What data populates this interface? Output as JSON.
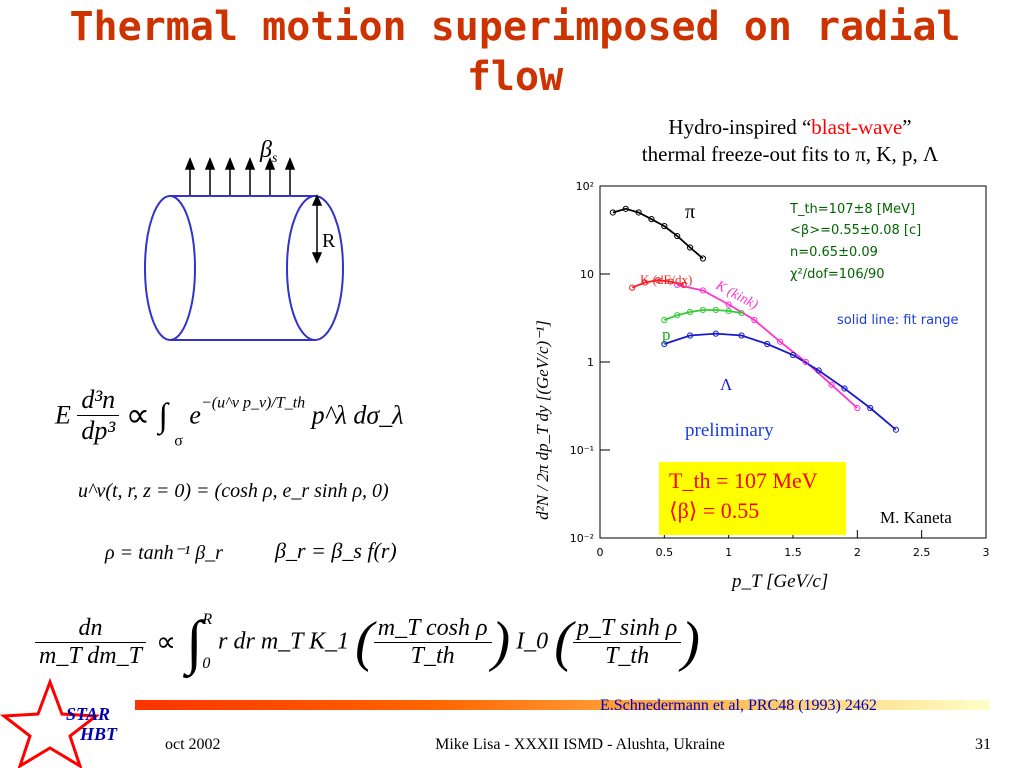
{
  "slide": {
    "title": "Thermal motion superimposed on radial flow",
    "caption_line1_prefix": "Hydro-inspired “",
    "caption_line1_highlight": "blast-wave",
    "caption_line1_suffix": "”",
    "caption_line2": "thermal freeze-out fits to π, K, p, Λ"
  },
  "diagram": {
    "beta_label": "β",
    "beta_sub": "s",
    "radius_label": "R"
  },
  "equations": {
    "eq1_E": "E",
    "eq1_num": "d³n",
    "eq1_den": "dp³",
    "eq1_rest": "∝ ∫",
    "eq1_sigma": "σ",
    "eq1_exp": "e",
    "eq1_exp_sup": "−(u^ν p_ν)/T_th",
    "eq1_tail": "p^λ dσ_λ",
    "eq2": "u^ν(t, r, z = 0) = (cosh ρ, e_r sinh ρ, 0)",
    "eq3a": "ρ = tanh⁻¹ β_r",
    "eq3b": "β_r = β_s  f(r)",
    "eq4_num": "dn",
    "eq4_den": "m_T dm_T",
    "eq4_prop": "∝",
    "eq4_int_upper": "R",
    "eq4_int_lower": "0",
    "eq4_body": "r dr m_T K_1",
    "eq4_frac1_num": "m_T cosh ρ",
    "eq4_frac1_den": "T_th",
    "eq4_I0": "I_0",
    "eq4_frac2_num": "p_T sinh ρ",
    "eq4_frac2_den": "T_th"
  },
  "fit_box": {
    "line1": "T_th=107±8 [MeV]",
    "line2": "<β>=0.55±0.08 [c]",
    "line3": "n=0.65±0.09",
    "line4": "χ²/dof=106/90",
    "solid_note": "solid line: fit range"
  },
  "highlight_box": {
    "line1": "T_th = 107 MeV",
    "line2": "⟨β⟩ = 0.55"
  },
  "annotations": {
    "preliminary": "preliminary",
    "author": "M. Kaneta",
    "pi": "π",
    "kaon_dedx": "K (dE/dx)",
    "kaon_kink": "K (kink)",
    "proton": "p",
    "lambda": "Λ"
  },
  "chart_data": {
    "type": "scatter",
    "xlabel": "p_T [GeV/c]",
    "ylabel": "d²N / 2π dp_T dy [(GeV/c)⁻¹]",
    "xlim": [
      0,
      3
    ],
    "ylim": [
      0.01,
      100
    ],
    "yscale": "log",
    "x_ticks": [
      "0",
      "0.5",
      "1",
      "1.5",
      "2",
      "2.5",
      "3"
    ],
    "y_ticks": [
      "10⁻²",
      "10⁻¹",
      "1",
      "10",
      "10²"
    ],
    "series": [
      {
        "name": "π",
        "color": "#000000",
        "x": [
          0.1,
          0.2,
          0.3,
          0.4,
          0.5,
          0.6,
          0.7,
          0.8
        ],
        "y": [
          50,
          55,
          50,
          42,
          35,
          27,
          20,
          15
        ]
      },
      {
        "name": "K (dE/dx)",
        "color": "#ee2222",
        "x": [
          0.25,
          0.35,
          0.45,
          0.55,
          0.65
        ],
        "y": [
          7,
          8,
          8.5,
          8.2,
          7.5
        ]
      },
      {
        "name": "K (kink)",
        "color": "#ff33cc",
        "x": [
          0.6,
          0.8,
          1.0,
          1.2,
          1.4,
          1.6,
          1.8,
          2.0
        ],
        "y": [
          7.5,
          6.5,
          4.5,
          3.0,
          1.7,
          1.0,
          0.55,
          0.3
        ]
      },
      {
        "name": "p",
        "color": "#33cc33",
        "x": [
          0.5,
          0.6,
          0.7,
          0.8,
          0.9,
          1.0,
          1.1
        ],
        "y": [
          3.0,
          3.4,
          3.7,
          3.9,
          3.9,
          3.8,
          3.6
        ]
      },
      {
        "name": "Λ",
        "color": "#1a1acc",
        "x": [
          0.5,
          0.7,
          0.9,
          1.1,
          1.3,
          1.5,
          1.7,
          1.9,
          2.1,
          2.3
        ],
        "y": [
          1.6,
          2.0,
          2.1,
          2.0,
          1.6,
          1.2,
          0.8,
          0.5,
          0.3,
          0.17
        ]
      }
    ]
  },
  "footer": {
    "reference": "E.Schnedermann et al,  PRC48 (1993) 2462",
    "logo_line1": "STAR",
    "logo_line2": "HBT",
    "date": "oct 2002",
    "speaker": "Mike Lisa - XXXII ISMD - Alushta, Ukraine",
    "page": "31"
  },
  "colors": {
    "title": "#cc3300",
    "fit_text": "#006600",
    "solid_note": "#1a3cdd",
    "preliminary": "#1a3cdd",
    "highlight_bg": "#ffff00",
    "highlight_text": "#ff0000",
    "reference": "#0000cc"
  }
}
